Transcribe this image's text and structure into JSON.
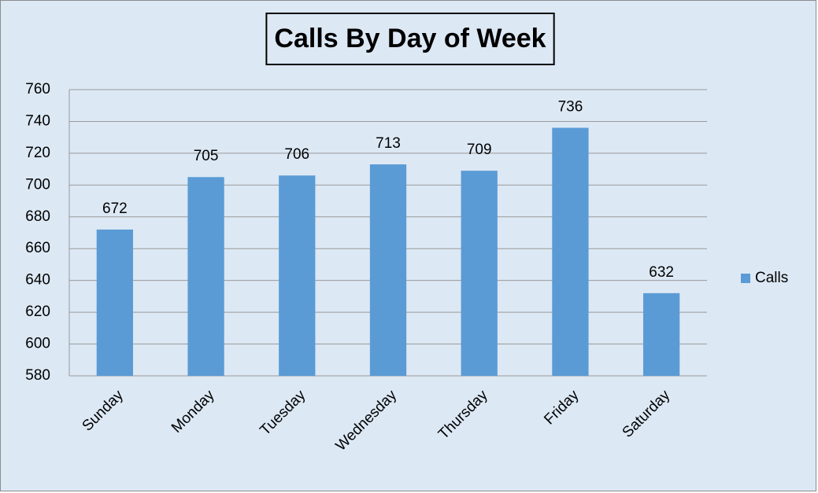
{
  "chart_data": {
    "type": "bar",
    "title": "Calls By Day of Week",
    "categories": [
      "Sunday",
      "Monday",
      "Tuesday",
      "Wednesday",
      "Thursday",
      "Friday",
      "Saturday"
    ],
    "series": [
      {
        "name": "Calls",
        "color": "#5b9bd5",
        "values": [
          672,
          705,
          706,
          713,
          709,
          736,
          632
        ]
      }
    ],
    "ylim": [
      580,
      760
    ],
    "yticks": [
      580,
      600,
      620,
      640,
      660,
      680,
      700,
      720,
      740,
      760
    ],
    "grid": true,
    "legend": "right",
    "data_labels": true
  }
}
